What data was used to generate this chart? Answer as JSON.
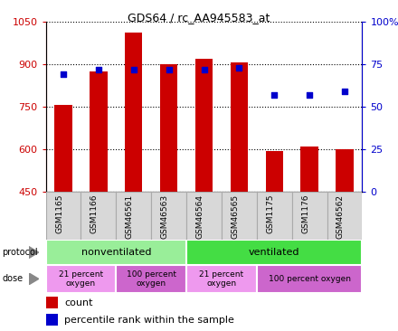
{
  "title": "GDS64 / rc_AA945583_at",
  "samples": [
    "GSM1165",
    "GSM1166",
    "GSM46561",
    "GSM46563",
    "GSM46564",
    "GSM46565",
    "GSM1175",
    "GSM1176",
    "GSM46562"
  ],
  "counts": [
    755,
    875,
    1010,
    900,
    920,
    905,
    595,
    610,
    600
  ],
  "percentiles": [
    69,
    72,
    72,
    72,
    72,
    73,
    57,
    57,
    59
  ],
  "ylim_left": [
    450,
    1050
  ],
  "ylim_right": [
    0,
    100
  ],
  "yticks_left": [
    450,
    600,
    750,
    900,
    1050
  ],
  "yticks_right": [
    0,
    25,
    50,
    75,
    100
  ],
  "ytick_labels_left": [
    "450",
    "600",
    "750",
    "900",
    "1050"
  ],
  "ytick_labels_right": [
    "0",
    "25",
    "50",
    "75",
    "100%"
  ],
  "bar_color": "#cc0000",
  "dot_color": "#0000cc",
  "bar_bottom": 450,
  "protocol_groups": [
    {
      "label": "nonventilated",
      "start": 0,
      "end": 4,
      "color": "#99ee99"
    },
    {
      "label": "ventilated",
      "start": 4,
      "end": 9,
      "color": "#44dd44"
    }
  ],
  "dose_groups": [
    {
      "label": "21 percent\noxygen",
      "start": 0,
      "end": 2,
      "color": "#ee99ee"
    },
    {
      "label": "100 percent\noxygen",
      "start": 2,
      "end": 4,
      "color": "#cc66cc"
    },
    {
      "label": "21 percent\noxygen",
      "start": 4,
      "end": 6,
      "color": "#ee99ee"
    },
    {
      "label": "100 percent oxygen",
      "start": 6,
      "end": 9,
      "color": "#cc66cc"
    }
  ],
  "tick_label_color_left": "#cc0000",
  "tick_label_color_right": "#0000cc",
  "xtick_bg_color": "#d8d8d8",
  "xtick_border_color": "#aaaaaa"
}
